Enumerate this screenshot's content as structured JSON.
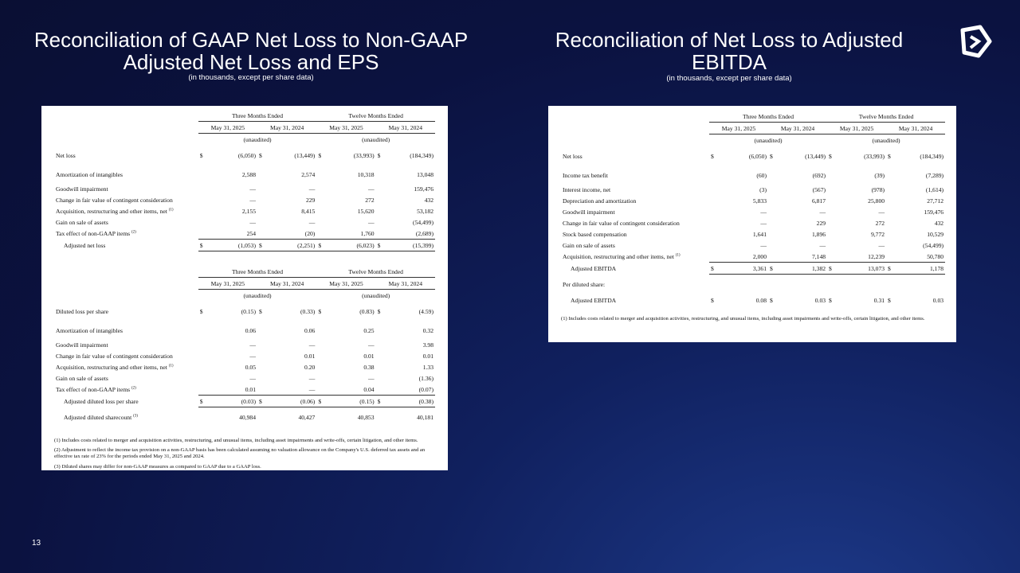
{
  "slide": {
    "page_number": "13"
  },
  "left": {
    "title": "Reconciliation of GAAP Net Loss to Non-GAAP Adjusted Net Loss and EPS",
    "subtitle": "(in thousands, except per share data)",
    "tables": [
      {
        "groups": [
          "Three Months Ended",
          "Twelve Months Ended"
        ],
        "periods": [
          "May 31, 2025",
          "May 31, 2024",
          "May 31, 2025",
          "May 31, 2024"
        ],
        "notes": [
          "(unaudited)",
          "(unaudited)"
        ],
        "rows": [
          {
            "label": "Net loss",
            "currency": "$",
            "values": [
              "(6,050)",
              "(13,449)",
              "(33,993)",
              "(184,349)"
            ]
          },
          {
            "label": "Amortization of intangibles",
            "values": [
              "2,588",
              "2,574",
              "10,318",
              "13,048"
            ]
          },
          {
            "label": "Goodwill impairment",
            "values": [
              "—",
              "—",
              "—",
              "159,476"
            ]
          },
          {
            "label": "Change in fair value of contingent consideration",
            "values": [
              "—",
              "229",
              "272",
              "432"
            ]
          },
          {
            "label": "Acquisition, restructuring and other items, net",
            "note": "(1)",
            "values": [
              "2,155",
              "8,415",
              "15,620",
              "53,182"
            ]
          },
          {
            "label": "Gain on sale of assets",
            "values": [
              "—",
              "—",
              "—",
              "(54,499)"
            ]
          },
          {
            "label": "Tax effect of non-GAAP items",
            "note": "(2)",
            "values": [
              "254",
              "(20)",
              "1,760",
              "(2,689)"
            ]
          },
          {
            "label": "Adjusted net loss",
            "currency": "$",
            "indent": true,
            "total": true,
            "values": [
              "(1,053)",
              "(2,251)",
              "(6,023)",
              "(15,399)"
            ]
          }
        ]
      },
      {
        "groups": [
          "Three Months Ended",
          "Twelve Months Ended"
        ],
        "periods": [
          "May 31, 2025",
          "May 31, 2024",
          "May 31, 2025",
          "May 31, 2024"
        ],
        "notes": [
          "(unaudited)",
          "(unaudited)"
        ],
        "rows": [
          {
            "label": "Diluted loss per share",
            "currency": "$",
            "values": [
              "(0.15)",
              "(0.33)",
              "(0.83)",
              "(4.59)"
            ]
          },
          {
            "label": "Amortization of intangibles",
            "values": [
              "0.06",
              "0.06",
              "0.25",
              "0.32"
            ]
          },
          {
            "label": "Goodwill impairment",
            "values": [
              "—",
              "—",
              "—",
              "3.98"
            ]
          },
          {
            "label": "Change in fair value of contingent consideration",
            "values": [
              "—",
              "0.01",
              "0.01",
              "0.01"
            ]
          },
          {
            "label": "Acquisition, restructuring and other items, net",
            "note": "(1)",
            "values": [
              "0.05",
              "0.20",
              "0.38",
              "1.33"
            ]
          },
          {
            "label": "Gain on sale of assets",
            "values": [
              "—",
              "—",
              "—",
              "(1.36)"
            ]
          },
          {
            "label": "Tax effect of non-GAAP items",
            "note": "(2)",
            "values": [
              "0.01",
              "—",
              "0.04",
              "(0.07)"
            ]
          },
          {
            "label": "Adjusted diluted loss per share",
            "currency": "$",
            "indent": true,
            "total": true,
            "values": [
              "(0.03)",
              "(0.06)",
              "(0.15)",
              "(0.38)"
            ]
          },
          {
            "label": "Adjusted diluted sharecount",
            "note": "(3)",
            "indent": true,
            "values": [
              "40,984",
              "40,427",
              "40,853",
              "40,181"
            ]
          }
        ]
      }
    ],
    "footnotes": [
      "(1)  Includes costs related to merger and acquisition activities, restructuring, and unusual items, including asset impairments and write-offs, certain litigation, and other items.",
      "(2)  Adjustment to reflect the income tax provision on a non-GAAP basis has been calculated assuming no valuation allowance on the Company's U.S. deferred tax assets and an effective tax rate of 23% for the periods ended May 31, 2025 and 2024.",
      "(3) Diluted shares may differ for non-GAAP measures as compared to GAAP due to a GAAP loss."
    ]
  },
  "right": {
    "title": "Reconciliation of Net Loss to Adjusted EBITDA",
    "subtitle": "(in thousands, except per share data)",
    "tables": [
      {
        "groups": [
          "Three Months Ended",
          "Twelve Months Ended"
        ],
        "periods": [
          "May 31, 2025",
          "May 31, 2024",
          "May 31, 2025",
          "May 31, 2024"
        ],
        "notes": [
          "(unaudited)",
          "(unaudited)"
        ],
        "rows": [
          {
            "label": "Net loss",
            "currency": "$",
            "values": [
              "(6,050)",
              "(13,449)",
              "(33,993)",
              "(184,349)"
            ]
          },
          {
            "label": "Income tax benefit",
            "values": [
              "(60)",
              "(692)",
              "(39)",
              "(7,289)"
            ]
          },
          {
            "label": "Interest income, net",
            "values": [
              "(3)",
              "(567)",
              "(978)",
              "(1,614)"
            ]
          },
          {
            "label": "Depreciation and amortization",
            "values": [
              "5,833",
              "6,817",
              "25,800",
              "27,712"
            ]
          },
          {
            "label": "Goodwill impairment",
            "values": [
              "—",
              "—",
              "—",
              "159,476"
            ]
          },
          {
            "label": "Change in fair value of contingent consideration",
            "values": [
              "—",
              "229",
              "272",
              "432"
            ]
          },
          {
            "label": "Stock based compensation",
            "values": [
              "1,641",
              "1,896",
              "9,772",
              "10,529"
            ]
          },
          {
            "label": "Gain on sale of assets",
            "values": [
              "—",
              "—",
              "—",
              "(54,499)"
            ]
          },
          {
            "label": "Acquisition, restructuring and other items, net",
            "note": "(1)",
            "values": [
              "2,000",
              "7,148",
              "12,239",
              "50,780"
            ]
          },
          {
            "label": "Adjusted EBITDA",
            "currency": "$",
            "indent": true,
            "total": true,
            "values": [
              "3,361",
              "1,382",
              "13,073",
              "1,178"
            ]
          },
          {
            "label": "Per diluted share:"
          },
          {
            "label": "Adjusted EBITDA",
            "currency": "$",
            "indent": true,
            "values": [
              "0.08",
              "0.03",
              "0.31",
              "0.03"
            ]
          }
        ]
      }
    ],
    "footnotes": [
      "(1)  Includes costs related to merger and acquisition activities, restructuring, and unusual items, including asset impairments and write-offs, certain litigation, and other items."
    ]
  }
}
